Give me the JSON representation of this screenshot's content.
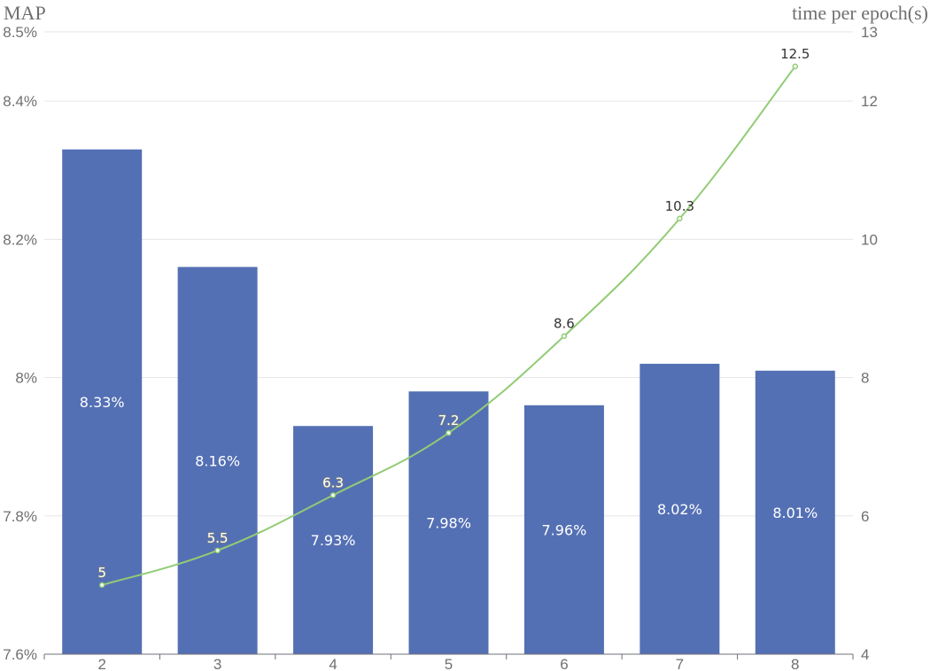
{
  "chart_data": {
    "type": "bar",
    "y_left_title": "MAP",
    "y_right_title": "time per epoch(s)",
    "categories": [
      "2",
      "3",
      "4",
      "5",
      "6",
      "7",
      "8"
    ],
    "left_axis": {
      "min": 7.6,
      "max": 8.5,
      "ticks": [
        7.6,
        7.8,
        8.0,
        8.2,
        8.4,
        8.5
      ],
      "tick_labels": [
        "7.6%",
        "7.8%",
        "8%",
        "8.2%",
        "8.4%",
        "8.5%"
      ]
    },
    "right_axis": {
      "min": 4,
      "max": 13,
      "ticks": [
        4,
        6,
        8,
        10,
        12,
        13
      ],
      "tick_labels": [
        "4",
        "6",
        "8",
        "10",
        "12",
        "13"
      ]
    },
    "series": [
      {
        "type": "bar",
        "axis": "left",
        "values": [
          8.33,
          8.16,
          7.93,
          7.98,
          7.96,
          8.02,
          8.01
        ],
        "labels": [
          "8.33%",
          "8.16%",
          "7.93%",
          "7.98%",
          "7.96%",
          "8.02%",
          "8.01%"
        ],
        "color": "#5470b4"
      },
      {
        "type": "line",
        "axis": "right",
        "values": [
          5,
          5.5,
          6.3,
          7.2,
          8.6,
          10.3,
          12.5
        ],
        "labels": [
          "5",
          "5.5",
          "6.3",
          "7.2",
          "8.6",
          "10.3",
          "12.5"
        ],
        "color": "#91cc75"
      }
    ],
    "grid": true
  }
}
